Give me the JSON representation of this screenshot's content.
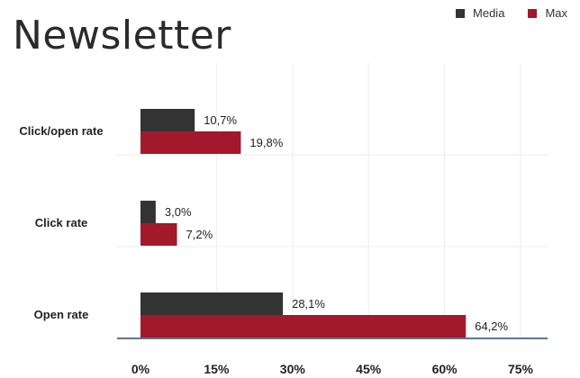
{
  "title": "Newsletter",
  "legend": [
    {
      "name": "Media",
      "color": "#333333"
    },
    {
      "name": "Max",
      "color": "#a2192b"
    }
  ],
  "chart_data": {
    "type": "bar",
    "orientation": "horizontal",
    "title": "Newsletter",
    "categories": [
      "Click/open rate",
      "Click rate",
      "Open rate"
    ],
    "series": [
      {
        "name": "Media",
        "color": "#333333",
        "values": [
          10.7,
          3.0,
          28.1
        ],
        "labels": [
          "10,7%",
          "3,0%",
          "28,1%"
        ]
      },
      {
        "name": "Max",
        "color": "#a2192b",
        "values": [
          19.8,
          7.2,
          64.2
        ],
        "labels": [
          "19,8%",
          "7,2%",
          "64,2%"
        ]
      }
    ],
    "xlim": [
      0,
      75
    ],
    "xticks": [
      0,
      15,
      30,
      45,
      60,
      75
    ],
    "xtick_labels": [
      "0%",
      "15%",
      "30%",
      "45%",
      "60%",
      "75%"
    ],
    "xlabel": "",
    "ylabel": "",
    "grid": true,
    "legend_position": "top-right"
  }
}
